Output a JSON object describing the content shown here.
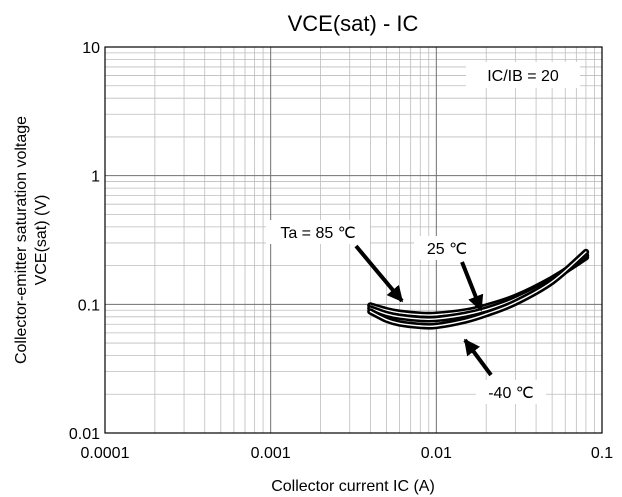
{
  "chart_data": {
    "type": "line",
    "title": "VCE(sat) - IC",
    "xlabel": "Collector current IC (A)",
    "ylabel_line1": "Collector-emitter saturation voltage",
    "ylabel_line2": "VCE(sat) (V)",
    "xscale": "log",
    "yscale": "log",
    "xlim": [
      0.0001,
      0.1
    ],
    "ylim": [
      0.01,
      10
    ],
    "grid": true,
    "x_tick_labels": [
      "0.0001",
      "0.001",
      "0.01",
      "0.1"
    ],
    "y_tick_labels": [
      "0.01",
      "0.1",
      "1",
      "10"
    ],
    "annotations": {
      "condition": "IC/IB = 20",
      "t85": "Ta = 85 ℃",
      "t25": "25 ℃",
      "tm40": "-40 ℃"
    },
    "series": [
      {
        "label_key": "t85",
        "x": [
          0.004,
          0.005,
          0.006,
          0.008,
          0.01,
          0.015,
          0.02,
          0.03,
          0.05,
          0.08
        ],
        "y": [
          0.098,
          0.09,
          0.086,
          0.083,
          0.083,
          0.088,
          0.096,
          0.114,
          0.158,
          0.232
        ]
      },
      {
        "label_key": "t25",
        "x": [
          0.004,
          0.005,
          0.006,
          0.008,
          0.01,
          0.015,
          0.02,
          0.03,
          0.05,
          0.08
        ],
        "y": [
          0.093,
          0.084,
          0.08,
          0.077,
          0.077,
          0.083,
          0.091,
          0.11,
          0.155,
          0.24
        ]
      },
      {
        "label_key": "tm40",
        "x": [
          0.004,
          0.005,
          0.006,
          0.008,
          0.01,
          0.015,
          0.02,
          0.03,
          0.05,
          0.08
        ],
        "y": [
          0.088,
          0.076,
          0.071,
          0.068,
          0.068,
          0.075,
          0.084,
          0.103,
          0.15,
          0.255
        ]
      }
    ]
  }
}
